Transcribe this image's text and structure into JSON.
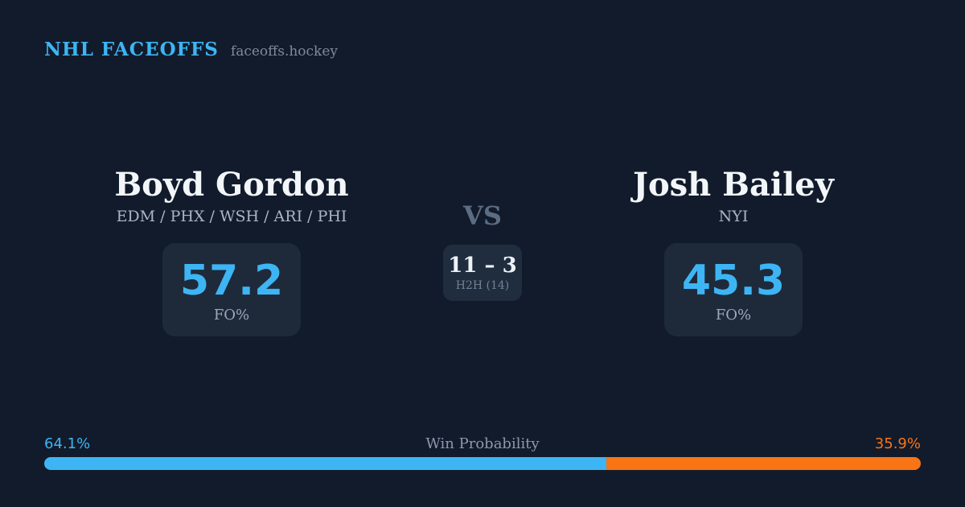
{
  "header": {
    "brand": "NHL FACEOFFS",
    "site": "faceoffs.hockey"
  },
  "left_player": {
    "name": "Boyd Gordon",
    "teams": "EDM / PHX / WSH / ARI / PHI",
    "fo_value": "57.2",
    "fo_label": "FO%"
  },
  "right_player": {
    "name": "Josh Bailey",
    "teams": "NYI",
    "fo_value": "45.3",
    "fo_label": "FO%"
  },
  "center": {
    "vs": "VS",
    "h2h_score": "11 – 3",
    "h2h_label": "H2H (14)"
  },
  "win_probability": {
    "title": "Win Probability",
    "left_pct_label": "64.1%",
    "right_pct_label": "35.9%",
    "left_value": 64.1,
    "right_value": 35.9
  },
  "colors": {
    "background": "#121b2b",
    "card": "#1e2a3a",
    "accent_blue": "#3db5f4",
    "accent_orange": "#f97415",
    "name_text": "#f3f6f9",
    "muted_text": "#a9b5c5"
  }
}
